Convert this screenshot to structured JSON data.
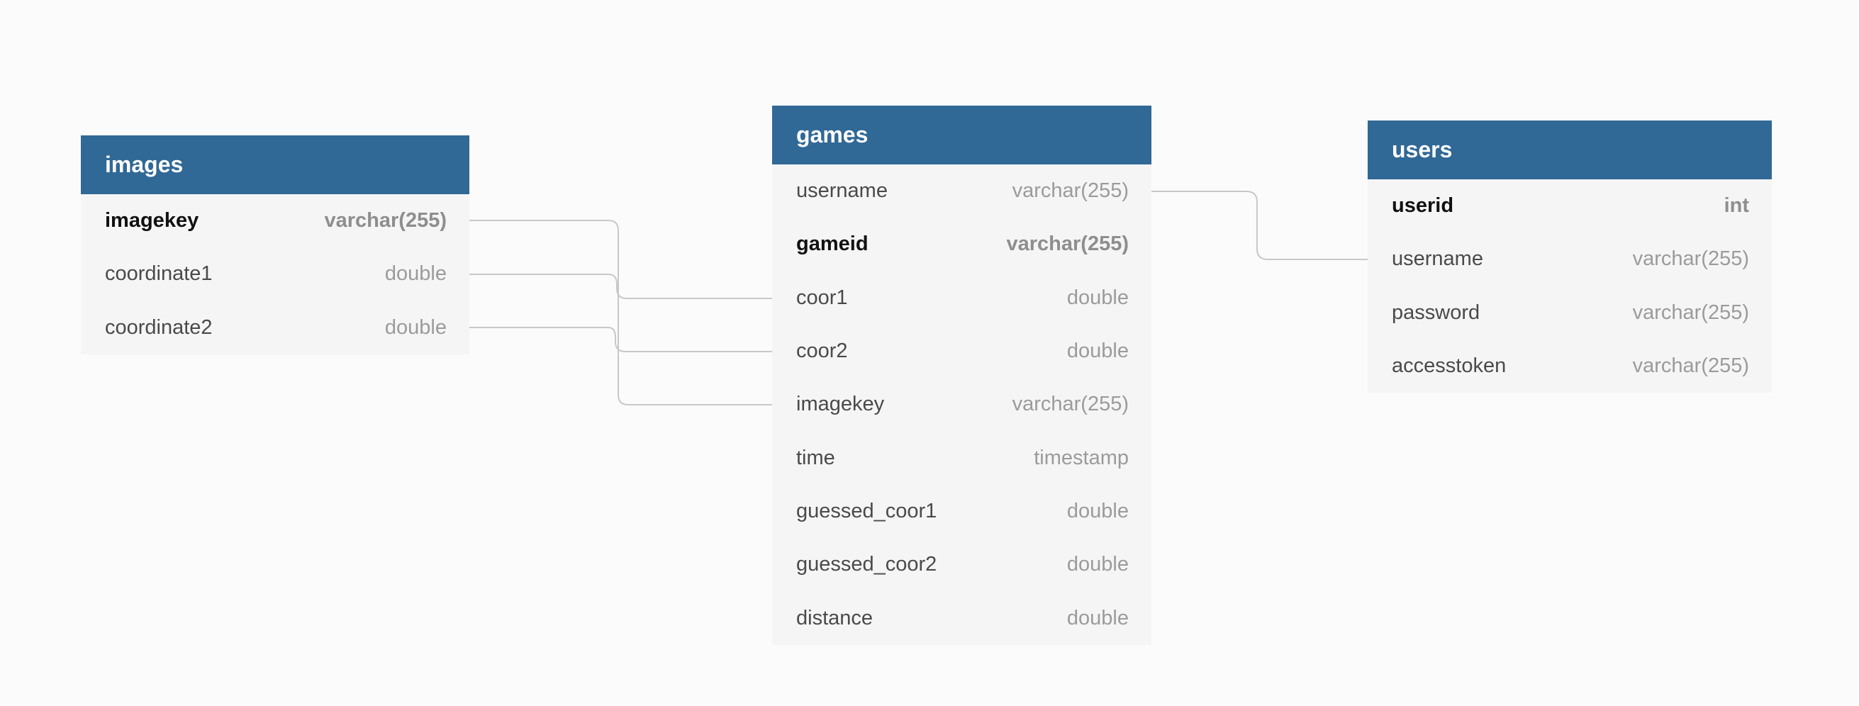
{
  "tables": {
    "images": {
      "title": "images",
      "columns": [
        {
          "name": "imagekey",
          "type": "varchar(255)",
          "primary": true
        },
        {
          "name": "coordinate1",
          "type": "double",
          "primary": false
        },
        {
          "name": "coordinate2",
          "type": "double",
          "primary": false
        }
      ]
    },
    "games": {
      "title": "games",
      "columns": [
        {
          "name": "username",
          "type": "varchar(255)",
          "primary": false
        },
        {
          "name": "gameid",
          "type": "varchar(255)",
          "primary": true
        },
        {
          "name": "coor1",
          "type": "double",
          "primary": false
        },
        {
          "name": "coor2",
          "type": "double",
          "primary": false
        },
        {
          "name": "imagekey",
          "type": "varchar(255)",
          "primary": false
        },
        {
          "name": "time",
          "type": "timestamp",
          "primary": false
        },
        {
          "name": "guessed_coor1",
          "type": "double",
          "primary": false
        },
        {
          "name": "guessed_coor2",
          "type": "double",
          "primary": false
        },
        {
          "name": "distance",
          "type": "double",
          "primary": false
        }
      ]
    },
    "users": {
      "title": "users",
      "columns": [
        {
          "name": "userid",
          "type": "int",
          "primary": true
        },
        {
          "name": "username",
          "type": "varchar(255)",
          "primary": false
        },
        {
          "name": "password",
          "type": "varchar(255)",
          "primary": false
        },
        {
          "name": "accesstoken",
          "type": "varchar(255)",
          "primary": false
        }
      ]
    }
  },
  "relations": [
    {
      "from": "images.imagekey",
      "to": "games.imagekey"
    },
    {
      "from": "images.coordinate1",
      "to": "games.coor1"
    },
    {
      "from": "images.coordinate2",
      "to": "games.coor2"
    },
    {
      "from": "games.username",
      "to": "users.username"
    }
  ],
  "colors": {
    "header_bg": "#306896",
    "header_text": "#ffffff",
    "body_bg": "#f5f5f5",
    "connector": "#c8c8c8",
    "canvas_bg": "#fbfbfb"
  }
}
